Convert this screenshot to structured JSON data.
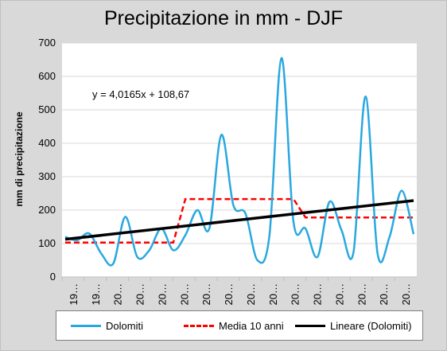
{
  "chart_data": {
    "type": "line",
    "title": "Precipitazione in mm - DJF",
    "ylabel": "mm di precipitazione",
    "ylim": [
      0,
      700
    ],
    "yticks": [
      0,
      100,
      200,
      300,
      400,
      500,
      600,
      700
    ],
    "xtick_labels": [
      "19…",
      "19…",
      "20…",
      "20…",
      "20…",
      "20…",
      "20…",
      "20…",
      "20…",
      "20…",
      "20…",
      "20…",
      "20…",
      "20…",
      "20…",
      "20…"
    ],
    "equation": "y = 4,0165x + 108,67",
    "grid": true,
    "legend_position": "bottom",
    "series": [
      {
        "name": "Dolomiti",
        "style": "smooth",
        "color": "#29a8e0",
        "values": [
          120,
          110,
          130,
          70,
          40,
          180,
          60,
          80,
          145,
          80,
          125,
          200,
          145,
          425,
          215,
          190,
          50,
          125,
          655,
          165,
          145,
          60,
          225,
          140,
          75,
          540,
          70,
          120,
          258,
          128
        ]
      },
      {
        "name": "Media 10 anni",
        "style": "dashed",
        "color": "#ff0000",
        "values": [
          103,
          103,
          103,
          103,
          103,
          103,
          103,
          103,
          103,
          103,
          233,
          233,
          233,
          233,
          233,
          233,
          233,
          233,
          233,
          233,
          178,
          178,
          178,
          178,
          178,
          178,
          178,
          178,
          178,
          178
        ]
      },
      {
        "name": "Lineare (Dolomiti)",
        "style": "solid",
        "color": "#000000",
        "values": [
          112.7,
          228.5
        ]
      }
    ]
  }
}
